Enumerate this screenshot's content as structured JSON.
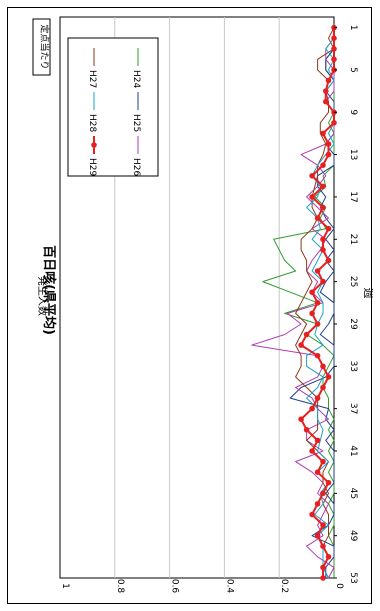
{
  "chart_data": {
    "type": "line",
    "title": "百日咳(県平均)",
    "xlabel": "週",
    "ylabel": "発生人数",
    "badge": "定点当たり",
    "x_ticks": [
      1,
      5,
      9,
      13,
      17,
      21,
      25,
      29,
      33,
      37,
      41,
      45,
      49,
      53
    ],
    "y_ticks": [
      "0",
      "0.2",
      "0.4",
      "0.6",
      "0.8",
      "1"
    ],
    "xlim": [
      0,
      53
    ],
    "ylim": [
      0,
      1
    ],
    "grid": true,
    "legend_position": "top-right",
    "series": [
      {
        "name": "H24",
        "color": "#2e9e2e",
        "marker": false,
        "values": [
          0,
          0,
          0,
          0.03,
          0.03,
          0,
          0,
          0,
          0,
          0.02,
          0,
          0,
          0,
          0,
          0.04,
          0.03,
          0.07,
          0.03,
          0.05,
          0.03,
          0.22,
          0.2,
          0.18,
          0.14,
          0.26,
          0.16,
          0.06,
          0.18,
          0.06,
          0.1,
          0.04,
          0,
          0.02,
          0.04,
          0.04,
          0.02,
          0.02,
          0,
          0.02,
          0,
          0.02,
          0,
          0.02,
          0,
          0,
          0.02,
          0,
          0,
          0.02,
          0,
          0,
          0,
          0
        ]
      },
      {
        "name": "H25",
        "color": "#1f3f8f",
        "marker": false,
        "values": [
          0,
          0,
          0,
          0.03,
          0.03,
          0,
          0.03,
          0,
          0,
          0,
          0,
          0.03,
          0,
          0,
          0.06,
          0.06,
          0.03,
          0.05,
          0.03,
          0,
          0.03,
          0,
          0.03,
          0,
          0.03,
          0.05,
          0,
          0,
          0.02,
          0.05,
          0,
          0,
          0,
          0.03,
          0.12,
          0.16,
          0.02,
          0.03,
          0,
          0.03,
          0,
          0,
          0,
          0,
          0.03,
          0,
          0,
          0.02,
          0.08,
          0,
          0,
          0.03,
          0.03
        ]
      },
      {
        "name": "H26",
        "color": "#b03cb0",
        "marker": false,
        "values": [
          0,
          0,
          0.03,
          0.03,
          0,
          0,
          0,
          0.03,
          0,
          0,
          0,
          0.03,
          0.12,
          0.06,
          0.03,
          0.06,
          0.1,
          0.06,
          0.02,
          0.08,
          0.03,
          0.05,
          0.08,
          0.1,
          0.06,
          0.08,
          0.04,
          0.17,
          0.12,
          0.18,
          0.3,
          0.06,
          0.04,
          0.06,
          0.14,
          0.08,
          0.06,
          0.02,
          0.1,
          0.1,
          0.04,
          0.14,
          0.08,
          0.04,
          0.06,
          0.02,
          0.04,
          0.06,
          0.04,
          0.1,
          0.06,
          0,
          0.02
        ]
      },
      {
        "name": "H27",
        "color": "#8b3a1a",
        "marker": false,
        "values": [
          0,
          0.02,
          0,
          0.06,
          0.06,
          0.02,
          0.03,
          0.02,
          0.02,
          0.05,
          0.05,
          0.03,
          0.04,
          0.06,
          0.06,
          0.07,
          0.08,
          0.08,
          0.06,
          0.08,
          0.12,
          0.12,
          0.1,
          0.1,
          0.08,
          0.1,
          0.12,
          0.14,
          0.1,
          0.12,
          0.14,
          0.12,
          0.12,
          0.14,
          0.1,
          0.06,
          0.06,
          0.06,
          0.06,
          0.1,
          0.06,
          0.02,
          0.04,
          0.04,
          0.02,
          0.04,
          0.02,
          0.02,
          0.02,
          0.04,
          0.02,
          0.04,
          0.02
        ]
      },
      {
        "name": "H28",
        "color": "#1aa3c8",
        "marker": false,
        "values": [
          0,
          0,
          0.03,
          0,
          0.02,
          0,
          0.03,
          0.03,
          0,
          0,
          0.02,
          0,
          0.03,
          0.06,
          0.08,
          0.05,
          0.06,
          0.1,
          0.06,
          0.05,
          0.08,
          0.04,
          0.06,
          0.08,
          0.04,
          0.06,
          0.04,
          0.04,
          0.06,
          0.07,
          0.04,
          0.1,
          0.1,
          0.04,
          0.06,
          0.1,
          0.06,
          0.06,
          0.04,
          0.05,
          0.06,
          0.02,
          0.06,
          0.02,
          0.05,
          0.04,
          0.07,
          0.02,
          0.06,
          0.04,
          0.04,
          0.04,
          0.02
        ]
      },
      {
        "name": "H29",
        "color": "#e62020",
        "marker": true,
        "values": [
          0,
          0,
          0,
          0,
          0,
          0.02,
          0.03,
          0.03,
          0,
          0,
          0.04,
          0.02,
          0.02,
          0.04,
          0.08,
          0.04,
          0.08,
          0.04,
          0.06,
          0.02,
          0.04,
          0.04,
          0.02,
          0.06,
          0.04,
          0.08,
          0.06,
          0.08,
          0.06,
          0.1,
          0.12,
          0.06,
          0.04,
          0.02,
          0.04,
          0.06,
          0.08,
          0.12,
          0.1,
          0.06,
          0.08,
          0.04,
          0.06,
          0.02,
          0.04,
          0.06,
          0.08,
          0.04,
          0.06,
          0.04,
          0.02,
          0.04,
          0.04
        ]
      }
    ]
  }
}
